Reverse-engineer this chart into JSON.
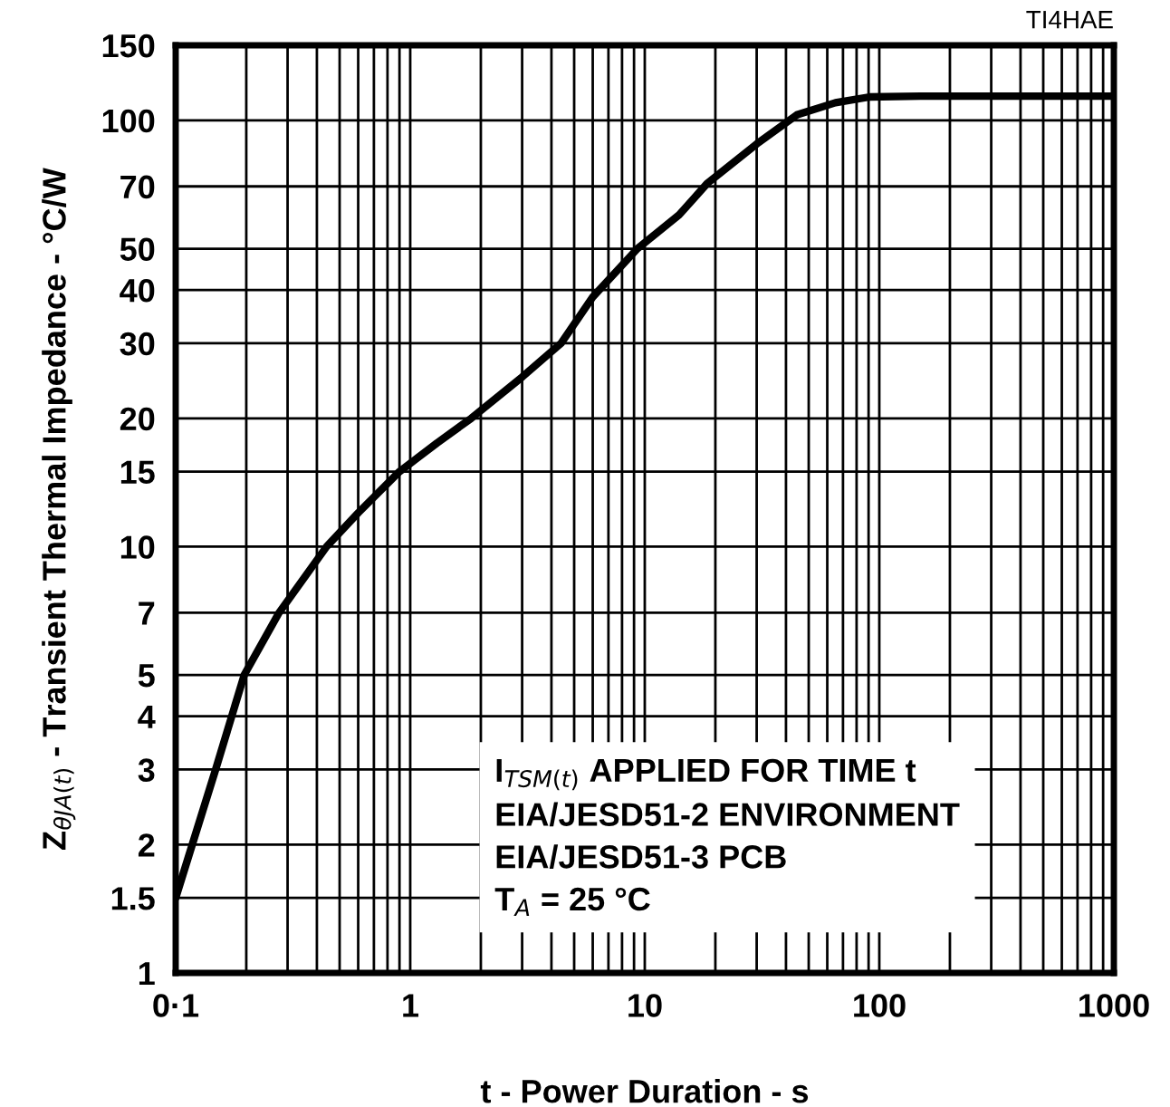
{
  "chart_data": {
    "type": "line",
    "xlabel": "t - Power Duration - s",
    "ylabel": "Z$_{θJA(t)}$ - Transient Thermal Impedance - °C/W",
    "log": "xy",
    "grid": true,
    "line_style": "solid",
    "marker": "none",
    "series": [
      {
        "color": "#000000",
        "x": [
          0.1,
          0.148,
          0.196,
          0.276,
          0.44,
          0.6,
          0.9,
          1.3,
          1.82,
          3,
          4.4,
          6,
          9.3,
          14,
          18.4,
          30,
          44.5,
          65,
          91,
          150,
          1000
        ],
        "values": [
          1.5,
          3,
          5,
          7,
          10,
          12,
          15,
          17.5,
          20,
          25,
          30,
          38.5,
          50,
          60,
          71,
          88,
          103,
          110,
          113.5,
          114,
          114
        ]
      }
    ],
    "xlim": [
      0.1,
      1000
    ],
    "ylim": [
      1,
      150
    ],
    "xticks": [
      {
        "value": 0.1,
        "label": "0·1"
      },
      {
        "value": 0.2,
        "label": null
      },
      {
        "value": 0.3,
        "label": null
      },
      {
        "value": 0.4,
        "label": null
      },
      {
        "value": 0.5,
        "label": null
      },
      {
        "value": 0.6,
        "label": null
      },
      {
        "value": 0.7,
        "label": null
      },
      {
        "value": 0.8,
        "label": null
      },
      {
        "value": 0.9,
        "label": null
      },
      1,
      {
        "value": 2,
        "label": null
      },
      {
        "value": 3,
        "label": null
      },
      {
        "value": 4,
        "label": null
      },
      {
        "value": 5,
        "label": null
      },
      {
        "value": 6,
        "label": null
      },
      {
        "value": 7,
        "label": null
      },
      {
        "value": 8,
        "label": null
      },
      {
        "value": 9,
        "label": null
      },
      10,
      {
        "value": 20,
        "label": null
      },
      {
        "value": 30,
        "label": null
      },
      {
        "value": 40,
        "label": null
      },
      {
        "value": 50,
        "label": null
      },
      {
        "value": 60,
        "label": null
      },
      {
        "value": 70,
        "label": null
      },
      {
        "value": 80,
        "label": null
      },
      {
        "value": 90,
        "label": null
      },
      100,
      {
        "value": 200,
        "label": null
      },
      {
        "value": 300,
        "label": null
      },
      {
        "value": 400,
        "label": null
      },
      {
        "value": 500,
        "label": null
      },
      {
        "value": 600,
        "label": null
      },
      {
        "value": 700,
        "label": null
      },
      {
        "value": 800,
        "label": null
      },
      {
        "value": 900,
        "label": null
      },
      1000
    ],
    "yticks": [
      1,
      1.5,
      2,
      3,
      4,
      5,
      7,
      10,
      15,
      20,
      30,
      40,
      50,
      70,
      100,
      150
    ],
    "annotations": [
      "TI4HAE",
      "I$_{TSM(t)}$ APPLIED FOR TIME t",
      "EIA/JESD51-2 ENVIRONMENT",
      "EIA/JESD51-3 PCB",
      "T$_{A}$ = 25 °C"
    ]
  }
}
